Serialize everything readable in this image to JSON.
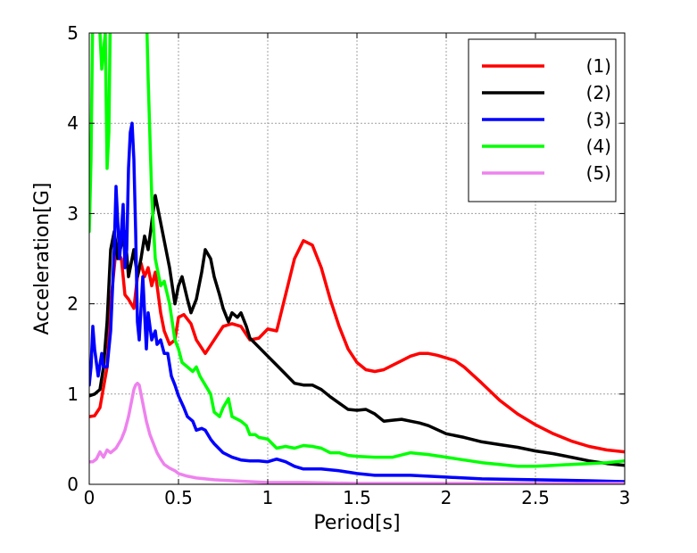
{
  "chart_data": {
    "type": "line",
    "title": "",
    "xlabel": "Period[s]",
    "ylabel": "Acceleration[G]",
    "xlim": [
      0,
      3
    ],
    "ylim": [
      0,
      5
    ],
    "xticks": [
      "0",
      "0.5",
      "1",
      "1.5",
      "2",
      "2.5",
      "3"
    ],
    "yticks": [
      "0",
      "1",
      "2",
      "3",
      "4",
      "5"
    ],
    "grid": true,
    "legend_position": "top-right",
    "series": [
      {
        "name": "(1)",
        "color": "#ff0000",
        "x": [
          0.0,
          0.03,
          0.06,
          0.1,
          0.12,
          0.15,
          0.18,
          0.2,
          0.22,
          0.25,
          0.27,
          0.29,
          0.31,
          0.33,
          0.35,
          0.37,
          0.4,
          0.42,
          0.45,
          0.48,
          0.5,
          0.53,
          0.57,
          0.6,
          0.65,
          0.7,
          0.75,
          0.8,
          0.85,
          0.9,
          0.95,
          1.0,
          1.05,
          1.1,
          1.15,
          1.2,
          1.25,
          1.3,
          1.35,
          1.4,
          1.45,
          1.5,
          1.55,
          1.6,
          1.65,
          1.7,
          1.75,
          1.8,
          1.85,
          1.9,
          1.95,
          2.0,
          2.05,
          2.1,
          2.2,
          2.3,
          2.4,
          2.5,
          2.6,
          2.7,
          2.8,
          2.9,
          3.0
        ],
        "y": [
          0.75,
          0.76,
          0.85,
          1.3,
          2.0,
          2.6,
          2.5,
          2.1,
          2.05,
          1.95,
          2.3,
          2.45,
          2.3,
          2.4,
          2.2,
          2.35,
          1.9,
          1.7,
          1.55,
          1.6,
          1.85,
          1.88,
          1.78,
          1.6,
          1.45,
          1.6,
          1.75,
          1.78,
          1.75,
          1.6,
          1.62,
          1.72,
          1.7,
          2.1,
          2.5,
          2.7,
          2.65,
          2.4,
          2.05,
          1.75,
          1.5,
          1.35,
          1.27,
          1.25,
          1.27,
          1.32,
          1.37,
          1.42,
          1.45,
          1.45,
          1.43,
          1.4,
          1.37,
          1.3,
          1.12,
          0.93,
          0.78,
          0.66,
          0.56,
          0.48,
          0.42,
          0.38,
          0.36
        ]
      },
      {
        "name": "(2)",
        "color": "#000000",
        "x": [
          0.0,
          0.03,
          0.06,
          0.08,
          0.1,
          0.12,
          0.14,
          0.16,
          0.18,
          0.2,
          0.22,
          0.25,
          0.27,
          0.29,
          0.31,
          0.33,
          0.35,
          0.37,
          0.4,
          0.42,
          0.45,
          0.48,
          0.5,
          0.52,
          0.55,
          0.57,
          0.6,
          0.63,
          0.65,
          0.68,
          0.7,
          0.73,
          0.75,
          0.78,
          0.8,
          0.83,
          0.85,
          0.88,
          0.9,
          0.95,
          1.0,
          1.05,
          1.1,
          1.15,
          1.2,
          1.25,
          1.3,
          1.35,
          1.4,
          1.45,
          1.5,
          1.55,
          1.6,
          1.65,
          1.7,
          1.75,
          1.8,
          1.85,
          1.9,
          2.0,
          2.1,
          2.2,
          2.3,
          2.4,
          2.5,
          2.6,
          2.7,
          2.8,
          2.9,
          3.0
        ],
        "y": [
          0.98,
          1.0,
          1.05,
          1.3,
          1.8,
          2.6,
          2.8,
          2.5,
          2.65,
          2.8,
          2.3,
          2.6,
          2.3,
          2.5,
          2.75,
          2.6,
          2.9,
          3.2,
          2.9,
          2.7,
          2.4,
          2.0,
          2.2,
          2.3,
          2.05,
          1.9,
          2.05,
          2.35,
          2.6,
          2.5,
          2.3,
          2.1,
          1.95,
          1.8,
          1.9,
          1.85,
          1.9,
          1.75,
          1.62,
          1.52,
          1.42,
          1.32,
          1.22,
          1.12,
          1.1,
          1.1,
          1.05,
          0.97,
          0.9,
          0.83,
          0.82,
          0.83,
          0.78,
          0.7,
          0.71,
          0.72,
          0.7,
          0.68,
          0.65,
          0.56,
          0.52,
          0.47,
          0.44,
          0.41,
          0.37,
          0.34,
          0.3,
          0.26,
          0.23,
          0.21
        ]
      },
      {
        "name": "(3)",
        "color": "#0000ff",
        "x": [
          0.0,
          0.01,
          0.02,
          0.03,
          0.05,
          0.07,
          0.08,
          0.1,
          0.12,
          0.14,
          0.15,
          0.17,
          0.19,
          0.2,
          0.21,
          0.22,
          0.23,
          0.24,
          0.25,
          0.26,
          0.27,
          0.28,
          0.3,
          0.32,
          0.33,
          0.35,
          0.37,
          0.38,
          0.4,
          0.42,
          0.44,
          0.46,
          0.48,
          0.5,
          0.53,
          0.55,
          0.58,
          0.6,
          0.63,
          0.65,
          0.68,
          0.7,
          0.75,
          0.8,
          0.85,
          0.9,
          0.95,
          1.0,
          1.05,
          1.1,
          1.15,
          1.2,
          1.3,
          1.4,
          1.5,
          1.6,
          1.8,
          2.0,
          2.2,
          2.5,
          2.8,
          3.0
        ],
        "y": [
          1.1,
          1.3,
          1.75,
          1.5,
          1.2,
          1.45,
          1.3,
          1.3,
          1.7,
          2.6,
          3.3,
          2.5,
          3.1,
          2.4,
          2.6,
          3.5,
          3.9,
          4.0,
          3.6,
          2.8,
          1.8,
          1.6,
          2.3,
          1.5,
          1.9,
          1.6,
          1.7,
          1.55,
          1.6,
          1.45,
          1.45,
          1.2,
          1.1,
          0.98,
          0.85,
          0.75,
          0.7,
          0.6,
          0.62,
          0.6,
          0.5,
          0.45,
          0.35,
          0.3,
          0.27,
          0.26,
          0.26,
          0.25,
          0.28,
          0.25,
          0.2,
          0.17,
          0.17,
          0.15,
          0.12,
          0.1,
          0.1,
          0.08,
          0.06,
          0.05,
          0.04,
          0.03
        ]
      },
      {
        "name": "(4)",
        "color": "#00ff00",
        "x": [
          0.0,
          0.01,
          0.02,
          0.03,
          0.04,
          0.05,
          0.06,
          0.07,
          0.08,
          0.09,
          0.1,
          0.11,
          0.12,
          0.13,
          0.14,
          0.15,
          0.17,
          0.19,
          0.2,
          0.22,
          0.24,
          0.26,
          0.28,
          0.3,
          0.32,
          0.33,
          0.35,
          0.37,
          0.4,
          0.42,
          0.45,
          0.48,
          0.5,
          0.52,
          0.55,
          0.58,
          0.6,
          0.62,
          0.65,
          0.68,
          0.7,
          0.73,
          0.75,
          0.78,
          0.8,
          0.83,
          0.85,
          0.88,
          0.9,
          0.93,
          0.95,
          1.0,
          1.05,
          1.1,
          1.15,
          1.2,
          1.25,
          1.3,
          1.35,
          1.4,
          1.45,
          1.5,
          1.6,
          1.7,
          1.8,
          1.9,
          2.0,
          2.1,
          2.2,
          2.3,
          2.4,
          2.5,
          2.6,
          2.7,
          2.8,
          2.9,
          3.0
        ],
        "y": [
          2.8,
          3.6,
          5.3,
          5.5,
          5.1,
          5.5,
          5.0,
          4.6,
          4.8,
          5.0,
          3.5,
          3.9,
          5.5,
          5.6,
          5.3,
          5.5,
          5.5,
          5.6,
          5.5,
          5.6,
          5.6,
          5.5,
          5.5,
          5.5,
          5.3,
          4.5,
          3.2,
          2.5,
          2.2,
          2.25,
          2.0,
          1.6,
          1.5,
          1.35,
          1.3,
          1.25,
          1.3,
          1.2,
          1.1,
          1.0,
          0.8,
          0.75,
          0.85,
          0.95,
          0.75,
          0.72,
          0.7,
          0.65,
          0.55,
          0.55,
          0.52,
          0.5,
          0.4,
          0.42,
          0.4,
          0.43,
          0.42,
          0.4,
          0.35,
          0.35,
          0.32,
          0.31,
          0.3,
          0.3,
          0.35,
          0.33,
          0.3,
          0.27,
          0.24,
          0.22,
          0.2,
          0.2,
          0.21,
          0.22,
          0.23,
          0.24,
          0.26
        ]
      },
      {
        "name": "(5)",
        "color": "#ee82ee",
        "x": [
          0.0,
          0.02,
          0.04,
          0.06,
          0.08,
          0.1,
          0.12,
          0.15,
          0.18,
          0.2,
          0.22,
          0.24,
          0.25,
          0.26,
          0.27,
          0.28,
          0.29,
          0.3,
          0.32,
          0.34,
          0.36,
          0.38,
          0.4,
          0.42,
          0.45,
          0.48,
          0.5,
          0.55,
          0.6,
          0.65,
          0.7,
          0.8,
          0.9,
          1.0,
          1.2,
          1.5,
          2.0,
          2.5,
          3.0
        ],
        "y": [
          0.25,
          0.25,
          0.28,
          0.36,
          0.3,
          0.38,
          0.35,
          0.4,
          0.5,
          0.6,
          0.75,
          0.95,
          1.05,
          1.1,
          1.12,
          1.1,
          1.0,
          0.9,
          0.7,
          0.55,
          0.45,
          0.35,
          0.28,
          0.22,
          0.18,
          0.15,
          0.12,
          0.09,
          0.07,
          0.06,
          0.05,
          0.04,
          0.03,
          0.02,
          0.02,
          0.01,
          0.01,
          0.01,
          0.01
        ]
      }
    ]
  }
}
